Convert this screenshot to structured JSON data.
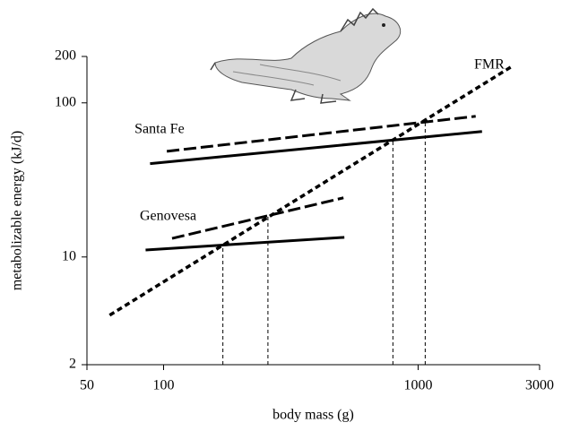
{
  "chart_data": {
    "type": "line",
    "x_label": "body mass (g)",
    "y_label": "metabolizable energy (kJ/d)",
    "xscale": "log",
    "yscale": "log",
    "xlim": [
      50,
      3000
    ],
    "ylim": [
      2,
      200
    ],
    "xticks": [
      50,
      100,
      1000,
      3000
    ],
    "yticks": [
      2,
      10,
      100,
      200
    ],
    "color": "#000000",
    "fmr": {
      "name": "FMR",
      "style": "dotted",
      "x": [
        61.4,
        2371
      ],
      "values": [
        4.19,
        175
      ]
    },
    "islands": [
      {
        "name": "Santa Fe",
        "lines": [
          {
            "style": "dashed",
            "x": [
              103,
              1683
            ],
            "values": [
              48.5,
              81.8
            ]
          },
          {
            "style": "solid",
            "x": [
              88.5,
              1782
            ],
            "values": [
              40.3,
              65.2
            ]
          }
        ]
      },
      {
        "name": "Genovesa",
        "lines": [
          {
            "style": "dashed",
            "x": [
              108,
              509
            ],
            "values": [
              13.2,
              24.2
            ]
          },
          {
            "style": "solid",
            "x": [
              85,
              513
            ],
            "values": [
              11.1,
              13.4
            ]
          }
        ]
      }
    ],
    "drop_lines": [
      {
        "x": 171,
        "y": 12.2
      },
      {
        "x": 257,
        "y": 18.5
      },
      {
        "x": 796,
        "y": 58.5
      },
      {
        "x": 1066,
        "y": 76.5
      }
    ]
  }
}
